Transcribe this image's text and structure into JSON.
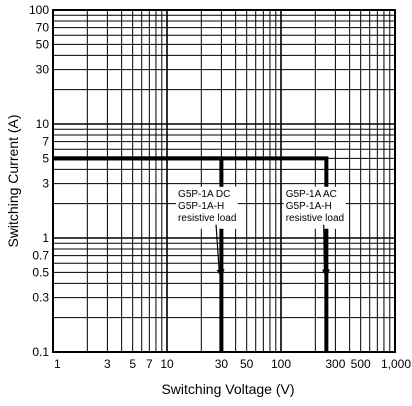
{
  "chart_data": {
    "type": "line",
    "xlabel": "Switching Voltage (V)",
    "ylabel": "Switching Current (A)",
    "xscale": "log",
    "yscale": "log",
    "xlim": [
      1,
      1000
    ],
    "ylim": [
      0.1,
      100
    ],
    "grid": true,
    "x_tick_labels": [
      "1",
      "3",
      "5",
      "7",
      "10",
      "30",
      "50",
      "100",
      "300",
      "500",
      "1,000"
    ],
    "x_tick_values": [
      1,
      3,
      5,
      7,
      10,
      30,
      50,
      100,
      300,
      500,
      1000
    ],
    "y_tick_labels": [
      "100",
      "70",
      "50",
      "30",
      "10",
      "7",
      "5",
      "3",
      "1",
      "0.7",
      "0.5",
      "0.3",
      "0.1"
    ],
    "y_tick_values": [
      100,
      70,
      50,
      30,
      10,
      7,
      5,
      3,
      1,
      0.7,
      0.5,
      0.3,
      0.1
    ],
    "series": [
      {
        "name": "G5P-1A DC G5P-1A-H resistive load",
        "x": [
          1,
          30,
          30
        ],
        "y": [
          5,
          5,
          0.1
        ]
      },
      {
        "name": "G5P-1A AC G5P-1A-H resistive load",
        "x": [
          1,
          250,
          250
        ],
        "y": [
          5,
          5,
          0.1
        ]
      }
    ],
    "annotations": [
      {
        "lines": [
          "G5P-1A DC",
          "G5P-1A-H",
          "resistive load"
        ],
        "x": 12.5,
        "y": 2.3,
        "arrow_to": [
          30,
          0.45
        ]
      },
      {
        "lines": [
          "G5P-1A AC",
          "G5P-1A-H",
          "resistive load"
        ],
        "x": 110,
        "y": 2.3,
        "arrow_to": [
          250,
          0.45
        ]
      }
    ]
  }
}
